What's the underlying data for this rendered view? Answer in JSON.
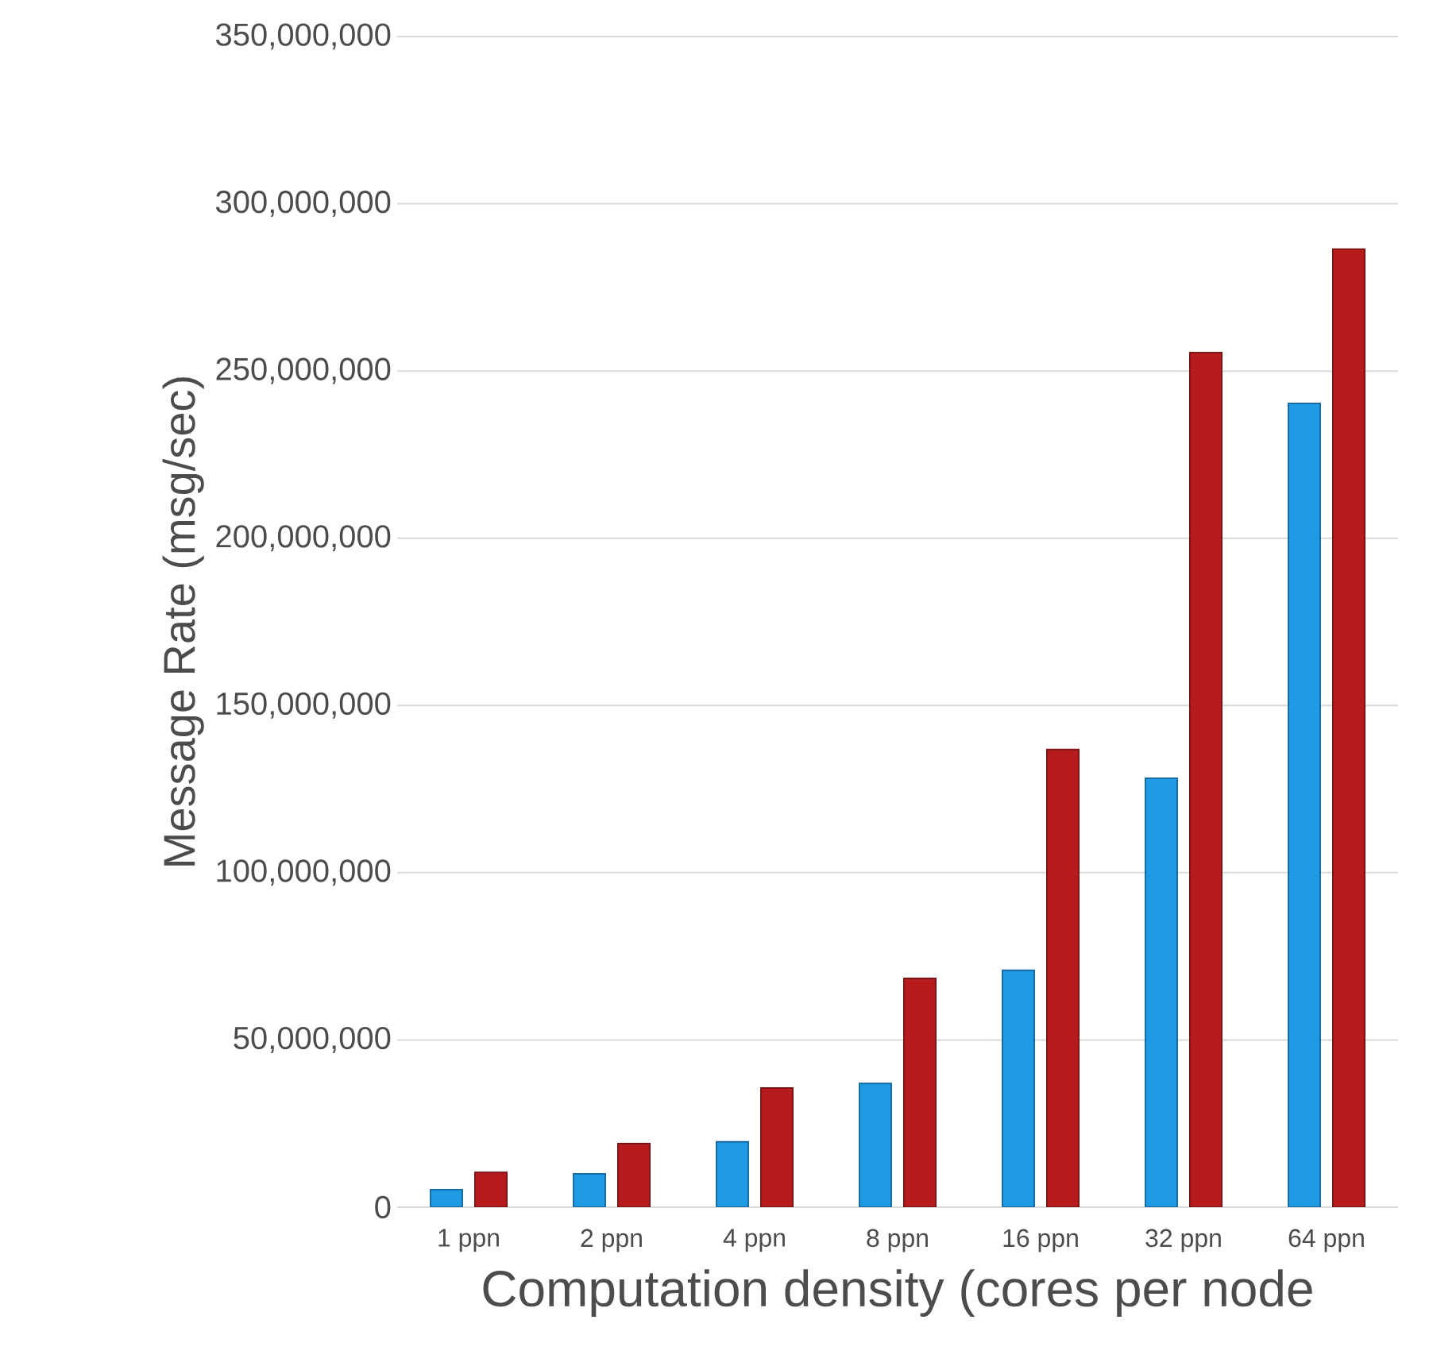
{
  "chart_data": {
    "type": "bar",
    "xlabel": "Computation density (cores per node",
    "ylabel": "Message Rate (msg/sec)",
    "categories": [
      "1 ppn",
      "2 ppn",
      "4 ppn",
      "8 ppn",
      "16 ppn",
      "32 ppn",
      "64 ppn"
    ],
    "series": [
      {
        "color": "#1f9be6",
        "values": [
          5200000,
          10000000,
          19500000,
          37000000,
          70800000,
          128200000,
          240300000
        ]
      },
      {
        "color": "#b71c1c",
        "values": [
          10400000,
          19000000,
          35600000,
          68400000,
          136800000,
          255500000,
          286400000
        ]
      }
    ],
    "ylim": [
      0,
      350000000
    ],
    "yticks": [
      {
        "value": 0,
        "label": "0"
      },
      {
        "value": 50000000,
        "label": "50,000,000"
      },
      {
        "value": 100000000,
        "label": "100,000,000"
      },
      {
        "value": 150000000,
        "label": "150,000,000"
      },
      {
        "value": 200000000,
        "label": "200,000,000"
      },
      {
        "value": 250000000,
        "label": "250,000,000"
      },
      {
        "value": 300000000,
        "label": "300,000,000"
      },
      {
        "value": 350000000,
        "label": "350,000,000"
      }
    ],
    "grid": "y"
  }
}
